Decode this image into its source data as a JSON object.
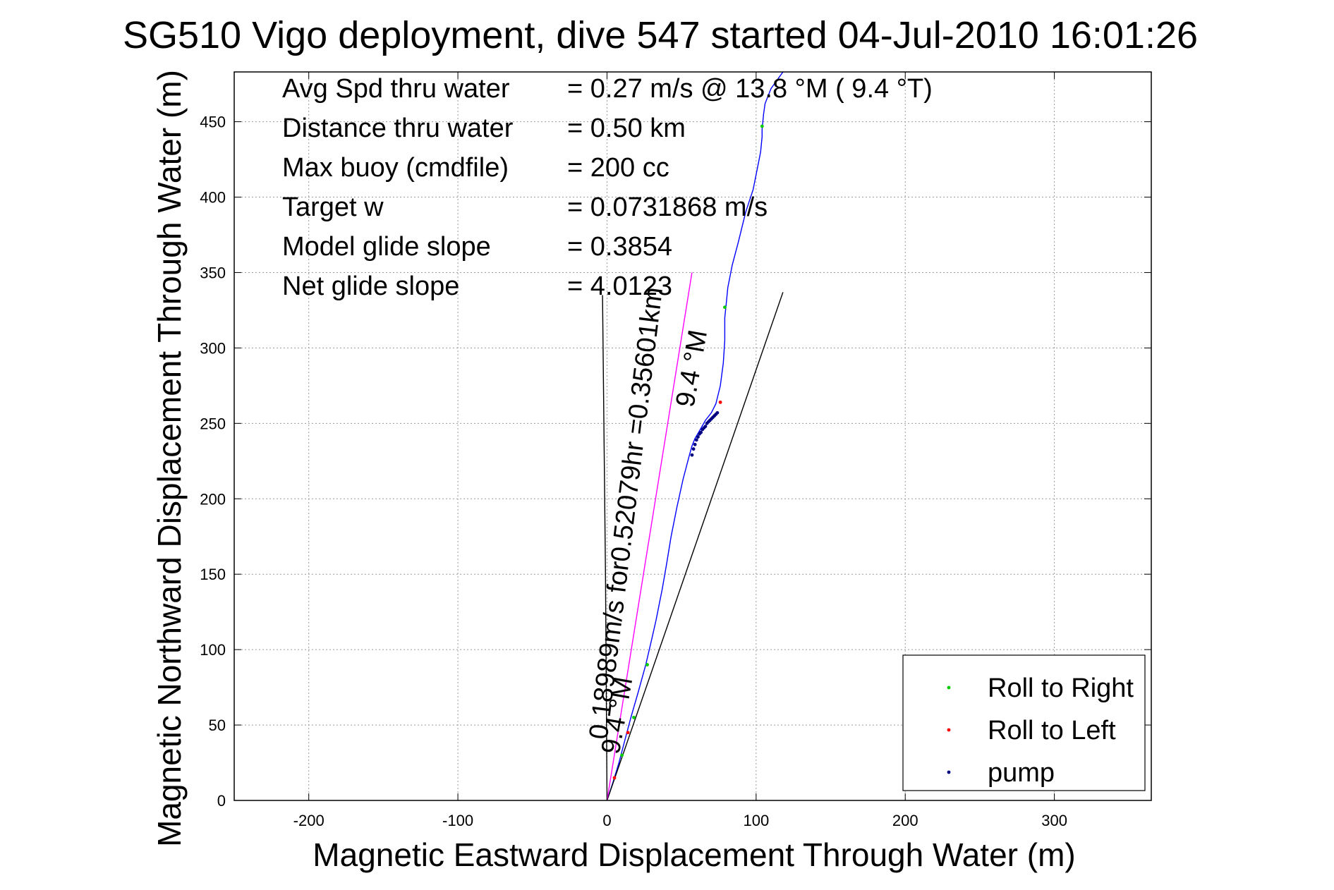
{
  "chart_data": {
    "type": "line",
    "title": "SG510 Vigo deployment, dive 547 started 04-Jul-2010 16:01:26",
    "xlabel": "Magnetic Eastward Displacement Through Water (m)",
    "ylabel": "Magnetic Northward Displacement Through Water (m)",
    "xlim": [
      -250,
      365
    ],
    "ylim": [
      0,
      483
    ],
    "xticks": [
      -200,
      -100,
      0,
      100,
      200,
      300
    ],
    "yticks": [
      0,
      50,
      100,
      150,
      200,
      250,
      300,
      350,
      400,
      450
    ],
    "grid": true,
    "legend_position": "bottom-right",
    "stats": [
      {
        "label": "Avg Spd thru water",
        "value": "=  0.27 m/s @  13.8 °M (  9.4 °T)"
      },
      {
        "label": "Distance thru water",
        "value": "=  0.50 km"
      },
      {
        "label": "Max buoy (cmdfile)",
        "value": "= 200 cc"
      },
      {
        "label": "Target w",
        "value": "= 0.0731868 m/s"
      },
      {
        "label": "Model glide slope",
        "value": "= 0.3854"
      },
      {
        "label": "Net glide slope",
        "value": "= 4.0123"
      }
    ],
    "annotations": [
      {
        "text": "0.18989m/s for0.52079hr =0.35601km",
        "x": 0,
        "y": 40,
        "angle_deg": -83
      },
      {
        "text": "9.4 °M",
        "x": 8,
        "y": 30,
        "angle_deg": -80
      },
      {
        "text": "9.4 °M",
        "x": 58,
        "y": 260,
        "angle_deg": -80
      }
    ],
    "series": [
      {
        "role": "track",
        "color": "#0000ff",
        "x": [
          0,
          4,
          8,
          12,
          16,
          21,
          26,
          30,
          33,
          35,
          37,
          40,
          43,
          47,
          51,
          55,
          57,
          59,
          62,
          66,
          70,
          73,
          76,
          78,
          79,
          79,
          80,
          81,
          84,
          88,
          93,
          98,
          101,
          103,
          104,
          104,
          105,
          106,
          110,
          118
        ],
        "y": [
          0,
          12,
          25,
          40,
          55,
          72,
          90,
          107,
          120,
          130,
          140,
          157,
          175,
          195,
          213,
          228,
          235,
          240,
          245,
          252,
          257,
          263,
          275,
          290,
          305,
          320,
          330,
          340,
          355,
          370,
          390,
          405,
          420,
          430,
          440,
          445,
          455,
          462,
          472,
          483
        ]
      },
      {
        "role": "vertical-velocity-line",
        "color": "#000000",
        "x": [
          -3,
          -1,
          0
        ],
        "y": [
          335,
          150,
          0
        ]
      },
      {
        "role": "net-displacement-line",
        "color": "#000000",
        "x": [
          0,
          118
        ],
        "y": [
          0,
          337
        ]
      },
      {
        "role": "current-vector",
        "color": "#ff00ff",
        "x": [
          0,
          57
        ],
        "y": [
          0,
          350
        ]
      }
    ],
    "markers": [
      {
        "name": "Roll to Right",
        "color": "#00cc00",
        "x": [
          10,
          18,
          27,
          79,
          104
        ],
        "y": [
          30,
          55,
          90,
          327,
          447
        ]
      },
      {
        "name": "Roll to Left",
        "color": "#ff0000",
        "x": [
          5,
          14,
          76
        ],
        "y": [
          15,
          45,
          264
        ]
      },
      {
        "name": "pump",
        "color": "#000080",
        "x": [
          57,
          58,
          59,
          60,
          61,
          62,
          63,
          64,
          65,
          66,
          67,
          68,
          69,
          70,
          71,
          72,
          73,
          74
        ],
        "y": [
          229,
          233,
          236,
          239,
          241,
          243,
          244,
          246,
          247,
          248,
          250,
          251,
          252,
          253,
          254,
          255,
          256,
          257
        ]
      }
    ]
  }
}
